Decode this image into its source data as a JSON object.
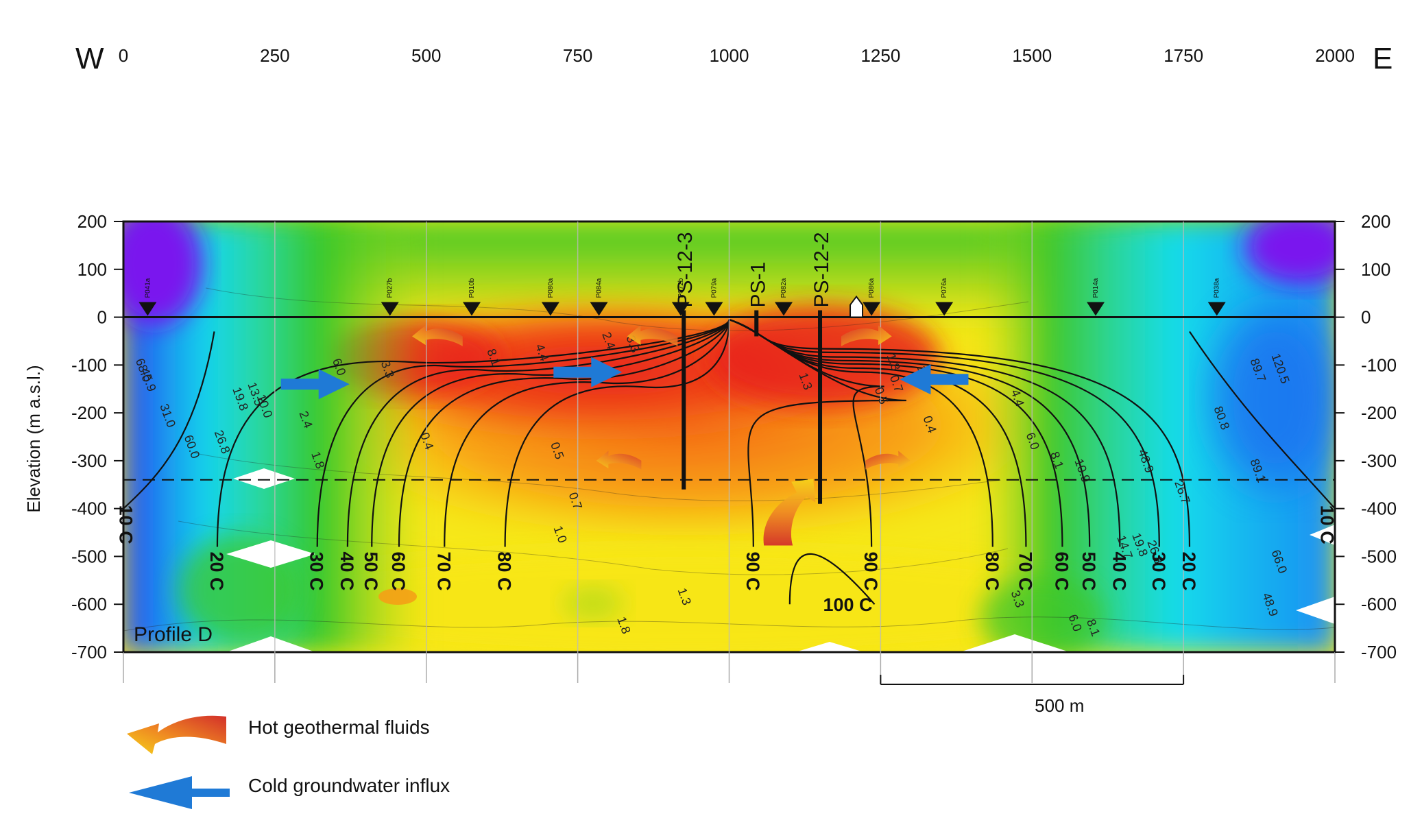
{
  "chart_data": {
    "type": "heatmap",
    "title": "",
    "ylabel": "Elevation (m a.s.l.)",
    "xlabel": "",
    "xlim": [
      0,
      2000
    ],
    "ylim": [
      -700,
      200
    ],
    "x_ticks": [
      "0",
      "250",
      "500",
      "750",
      "1000",
      "1250",
      "1500",
      "1750",
      "2000"
    ],
    "y_ticks_left": [
      "200",
      "100",
      "0",
      "-100",
      "-200",
      "-300",
      "-400",
      "-500",
      "-600",
      "-700"
    ],
    "y_ticks_right": [
      "200",
      "100",
      "0",
      "-100",
      "-200",
      "-300",
      "-400",
      "-500",
      "-600",
      "-700"
    ],
    "west_label": "W",
    "east_label": "E",
    "profile_label": "Profile D",
    "scale_bar": {
      "label": "500 m",
      "length_m": 500,
      "x_start": 1250,
      "x_end": 1750
    },
    "dashed_line_elevation": -340,
    "isotherms": [
      {
        "label": "10 C",
        "x_bottom": 10,
        "side": "west"
      },
      {
        "label": "20 C",
        "x_bottom": 155
      },
      {
        "label": "30 C",
        "x_bottom": 320
      },
      {
        "label": "40 C",
        "x_bottom": 370
      },
      {
        "label": "50 C",
        "x_bottom": 410
      },
      {
        "label": "60 C",
        "x_bottom": 455
      },
      {
        "label": "70 C",
        "x_bottom": 530
      },
      {
        "label": "80 C",
        "x_bottom": 630
      },
      {
        "label": "90 C",
        "x_bottom": 1040
      },
      {
        "label": "100 C",
        "x_bottom": 1160
      },
      {
        "label": "90 C",
        "x_bottom": 1235
      },
      {
        "label": "80 C",
        "x_bottom": 1435
      },
      {
        "label": "70 C",
        "x_bottom": 1490
      },
      {
        "label": "60 C",
        "x_bottom": 1550
      },
      {
        "label": "50 C",
        "x_bottom": 1595
      },
      {
        "label": "40 C",
        "x_bottom": 1645
      },
      {
        "label": "30 C",
        "x_bottom": 1710
      },
      {
        "label": "20 C",
        "x_bottom": 1760
      },
      {
        "label": "10 C",
        "x_bottom": 1985,
        "side": "east"
      }
    ],
    "wells": [
      {
        "name": "PS-12-3",
        "x": 925,
        "bottom": -360
      },
      {
        "name": "PS-1",
        "x": 1045,
        "bottom": -40
      },
      {
        "name": "PS-12-2",
        "x": 1150,
        "bottom": -390
      }
    ],
    "stations": [
      {
        "name": "P041a",
        "x": 40
      },
      {
        "name": "P027b",
        "x": 440
      },
      {
        "name": "P010b",
        "x": 575
      },
      {
        "name": "P080a",
        "x": 705
      },
      {
        "name": "P084a",
        "x": 785
      },
      {
        "name": "P072b",
        "x": 920
      },
      {
        "name": "P079a",
        "x": 975
      },
      {
        "name": "P082a",
        "x": 1090
      },
      {
        "name": "P086a",
        "x": 1235
      },
      {
        "name": "P076a",
        "x": 1355
      },
      {
        "name": "P014a",
        "x": 1605
      },
      {
        "name": "P038a",
        "x": 1805
      }
    ],
    "resistivity_labels": [
      {
        "text": "68.0",
        "x": 20,
        "y": -90
      },
      {
        "text": "45.9",
        "x": 28,
        "y": -110
      },
      {
        "text": "31.0",
        "x": 60,
        "y": -185
      },
      {
        "text": "60.0",
        "x": 100,
        "y": -250
      },
      {
        "text": "26.8",
        "x": 150,
        "y": -240
      },
      {
        "text": "19.8",
        "x": 180,
        "y": -150
      },
      {
        "text": "13.5",
        "x": 205,
        "y": -140
      },
      {
        "text": "10.0",
        "x": 220,
        "y": -165
      },
      {
        "text": "2.4",
        "x": 290,
        "y": -200
      },
      {
        "text": "1.8",
        "x": 310,
        "y": -285
      },
      {
        "text": "6.0",
        "x": 345,
        "y": -90
      },
      {
        "text": "3.3",
        "x": 425,
        "y": -95
      },
      {
        "text": "0.4",
        "x": 490,
        "y": -245
      },
      {
        "text": "8.1",
        "x": 600,
        "y": -70
      },
      {
        "text": "4.4",
        "x": 680,
        "y": -60
      },
      {
        "text": "2.4",
        "x": 790,
        "y": -35
      },
      {
        "text": "3.3",
        "x": 830,
        "y": -42
      },
      {
        "text": "0.5",
        "x": 705,
        "y": -265
      },
      {
        "text": "0.7",
        "x": 735,
        "y": -370
      },
      {
        "text": "1.0",
        "x": 710,
        "y": -440
      },
      {
        "text": "1.3",
        "x": 915,
        "y": -570
      },
      {
        "text": "1.8",
        "x": 815,
        "y": -630
      },
      {
        "text": "1.3",
        "x": 1115,
        "y": -120
      },
      {
        "text": "0.7",
        "x": 1265,
        "y": -125
      },
      {
        "text": "1.0",
        "x": 1310,
        "y": -105
      },
      {
        "text": "1.8",
        "x": 1260,
        "y": -80
      },
      {
        "text": "0.5",
        "x": 1240,
        "y": -150
      },
      {
        "text": "0.4",
        "x": 1320,
        "y": -210
      },
      {
        "text": "4.4",
        "x": 1465,
        "y": -155
      },
      {
        "text": "6.0",
        "x": 1490,
        "y": -245
      },
      {
        "text": "8.1",
        "x": 1530,
        "y": -285
      },
      {
        "text": "10.9",
        "x": 1570,
        "y": -300
      },
      {
        "text": "48.9",
        "x": 1675,
        "y": -280
      },
      {
        "text": "26.7",
        "x": 1735,
        "y": -345
      },
      {
        "text": "14.7",
        "x": 1640,
        "y": -460
      },
      {
        "text": "19.8",
        "x": 1665,
        "y": -455
      },
      {
        "text": "26.8",
        "x": 1690,
        "y": -470
      },
      {
        "text": "80.8",
        "x": 1800,
        "y": -190
      },
      {
        "text": "89.1",
        "x": 1860,
        "y": -300
      },
      {
        "text": "89.7",
        "x": 1860,
        "y": -90
      },
      {
        "text": "120.5",
        "x": 1895,
        "y": -80
      },
      {
        "text": "66.0",
        "x": 1895,
        "y": -490
      },
      {
        "text": "48.9",
        "x": 1880,
        "y": -580
      },
      {
        "text": "6.0",
        "x": 1560,
        "y": -625
      },
      {
        "text": "8.1",
        "x": 1590,
        "y": -635
      },
      {
        "text": "3.3",
        "x": 1465,
        "y": -575
      }
    ],
    "legend": [
      {
        "label": "Hot geothermal fluids",
        "symbol": "hot-fluid-arrow-icon"
      },
      {
        "label": "Cold groundwater influx",
        "symbol": "cold-water-arrow-icon"
      }
    ],
    "colors": {
      "resistivity_low": "#e8241c",
      "resistivity_mid": "#f5ee14",
      "resistivity_green": "#37c82a",
      "resistivity_cyan": "#14dcea",
      "resistivity_high": "#7a18ee",
      "cold_arrow": "#1f7ad6",
      "hot_arrow_start": "#f3c21b",
      "hot_arrow_end": "#d23a2a"
    }
  }
}
